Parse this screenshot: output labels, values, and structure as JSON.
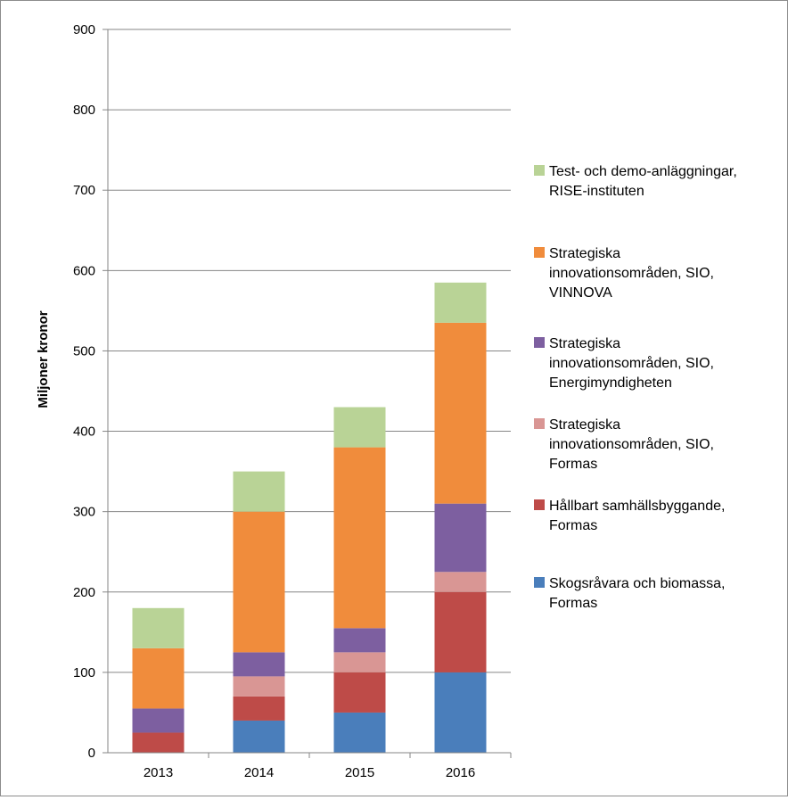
{
  "chart_data": {
    "type": "bar",
    "stacked": true,
    "categories": [
      "2013",
      "2014",
      "2015",
      "2016"
    ],
    "ylabel": "Miljoner kronor",
    "xlabel": "",
    "title": "",
    "ylim": [
      0,
      900
    ],
    "yticks": [
      "0",
      "100",
      "200",
      "300",
      "400",
      "500",
      "600",
      "700",
      "800",
      "900"
    ],
    "grid": true,
    "legend_position": "right",
    "series": [
      {
        "name": "Skogsråvara och biomassa, Formas",
        "legend_lines": [
          "Skogsråvara och biomassa,",
          "Formas"
        ],
        "color": "#4a7ebb",
        "values": [
          0,
          40,
          50,
          100
        ]
      },
      {
        "name": "Hållbart samhällsbyggande, Formas",
        "legend_lines": [
          "Hållbart samhällsbyggande,",
          "Formas"
        ],
        "color": "#be4b48",
        "values": [
          25,
          30,
          50,
          100
        ]
      },
      {
        "name": "Strategiska innovationsområden, SIO, Formas",
        "legend_lines": [
          "Strategiska",
          "innovationsområden, SIO,",
          "Formas"
        ],
        "color": "#d99694",
        "values": [
          0,
          25,
          25,
          25
        ]
      },
      {
        "name": "Strategiska innovationsområden, SIO, Energimyndigheten",
        "legend_lines": [
          "Strategiska",
          "innovationsområden, SIO,",
          "Energimyndigheten"
        ],
        "color": "#7d5fa0",
        "values": [
          30,
          30,
          30,
          85
        ]
      },
      {
        "name": "Strategiska innovationsområden, SIO, VINNOVA",
        "legend_lines": [
          "Strategiska",
          "innovationsområden, SIO,",
          "VINNOVA"
        ],
        "color": "#f08c3c",
        "values": [
          75,
          175,
          225,
          225
        ]
      },
      {
        "name": "Test- och demo-anläggningar, RISE-instituten",
        "legend_lines": [
          "Test- och demo-anläggningar,",
          "RISE-instituten"
        ],
        "color": "#b9d396",
        "values": [
          50,
          50,
          50,
          50
        ]
      }
    ]
  }
}
